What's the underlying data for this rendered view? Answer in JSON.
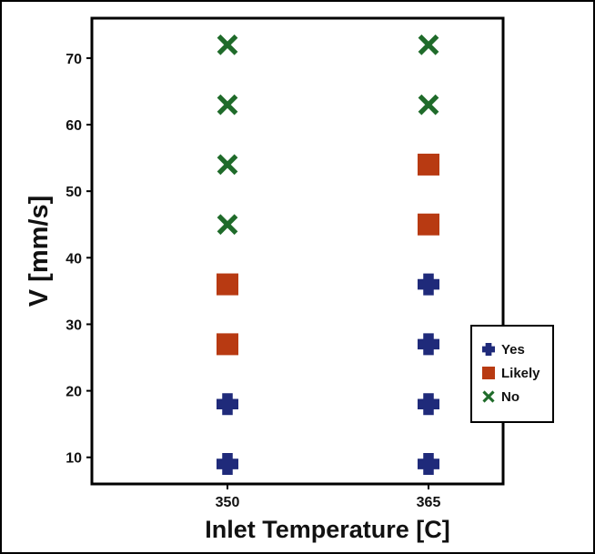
{
  "chart_data": {
    "type": "scatter",
    "title": "",
    "xlabel": "Inlet Temperature [C]",
    "ylabel": "V [mm/s]",
    "x_categories": [
      "350",
      "365"
    ],
    "yticks": [
      10,
      20,
      30,
      40,
      50,
      60,
      70
    ],
    "ylim": [
      6,
      76
    ],
    "grid": false,
    "legend_position": "right",
    "series": [
      {
        "name": "Yes",
        "marker": "plus",
        "color": "#1f2a7a",
        "points": [
          {
            "x": "350",
            "y": 9
          },
          {
            "x": "350",
            "y": 18
          },
          {
            "x": "365",
            "y": 9
          },
          {
            "x": "365",
            "y": 18
          },
          {
            "x": "365",
            "y": 27
          },
          {
            "x": "365",
            "y": 36
          }
        ]
      },
      {
        "name": "Likely",
        "marker": "square",
        "color": "#b83a12",
        "points": [
          {
            "x": "350",
            "y": 27
          },
          {
            "x": "350",
            "y": 36
          },
          {
            "x": "365",
            "y": 45
          },
          {
            "x": "365",
            "y": 54
          }
        ]
      },
      {
        "name": "No",
        "marker": "x",
        "color": "#1f6b2a",
        "points": [
          {
            "x": "350",
            "y": 45
          },
          {
            "x": "350",
            "y": 54
          },
          {
            "x": "350",
            "y": 63
          },
          {
            "x": "350",
            "y": 72
          },
          {
            "x": "365",
            "y": 63
          },
          {
            "x": "365",
            "y": 72
          }
        ]
      }
    ]
  }
}
